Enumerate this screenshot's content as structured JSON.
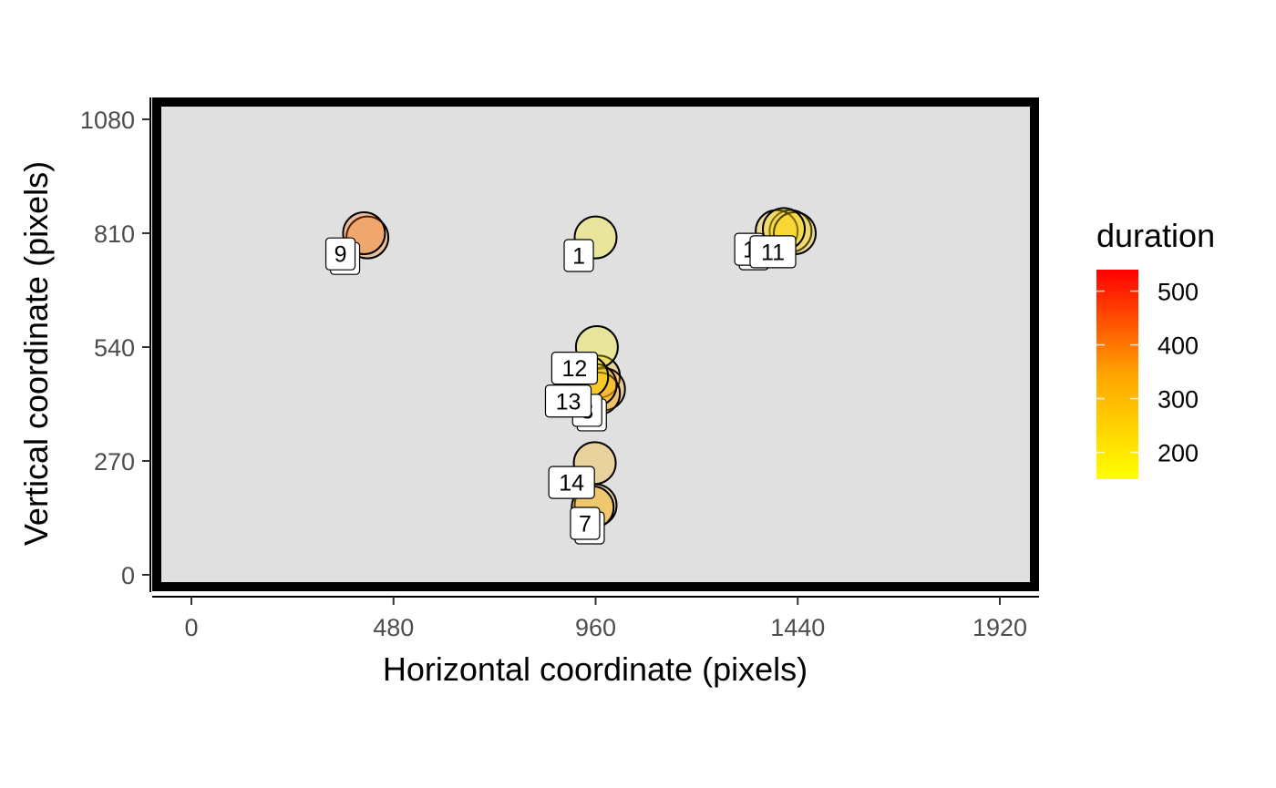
{
  "chart_data": {
    "type": "scatter",
    "title": "",
    "xlabel": "Horizontal coordinate (pixels)",
    "ylabel": "Vertical coordinate (pixels)",
    "xlim": [
      -100,
      2020
    ],
    "ylim": [
      -50,
      1110
    ],
    "x_ticks": [
      0,
      480,
      960,
      1440,
      1920
    ],
    "y_ticks": [
      0,
      270,
      540,
      810,
      1080
    ],
    "grid": false,
    "panel_background": "#e0e0e0",
    "panel_border_color": "#000000",
    "point_stroke_color": "#000000",
    "point_fill_opacity": 0.3,
    "legend": {
      "title": "duration",
      "position": "right",
      "ticks": [
        200,
        300,
        400,
        500
      ],
      "range": [
        150,
        540
      ],
      "color_low": "#ffff00",
      "color_high": "#ff0000"
    },
    "points": [
      {
        "id": "1",
        "x": 960,
        "y": 800,
        "duration": 180,
        "show_label": true
      },
      {
        "id": "2",
        "x": 1423,
        "y": 815,
        "duration": 250,
        "show_label": false
      },
      {
        "id": "3",
        "x": 968,
        "y": 470,
        "duration": 310,
        "show_label": false
      },
      {
        "id": "4",
        "x": 980,
        "y": 440,
        "duration": 360,
        "show_label": false
      },
      {
        "id": "5",
        "x": 968,
        "y": 430,
        "duration": 330,
        "show_label": false
      },
      {
        "id": "6",
        "x": 960,
        "y": 165,
        "duration": 330,
        "show_label": false
      },
      {
        "id": "7",
        "x": 953,
        "y": 160,
        "duration": 310,
        "show_label": true
      },
      {
        "id": "8",
        "x": 418,
        "y": 800,
        "duration": 400,
        "show_label": false
      },
      {
        "id": "9",
        "x": 410,
        "y": 810,
        "duration": 410,
        "show_label": true
      },
      {
        "id": "10",
        "x": 1390,
        "y": 815,
        "duration": 260,
        "show_label": true
      },
      {
        "id": "11",
        "x": 1433,
        "y": 810,
        "duration": 250,
        "show_label": true
      },
      {
        "id": "12",
        "x": 963,
        "y": 540,
        "duration": 190,
        "show_label": true
      },
      {
        "id": "13",
        "x": 960,
        "y": 450,
        "duration": 280,
        "show_label": true
      },
      {
        "id": "14",
        "x": 958,
        "y": 265,
        "duration": 320,
        "show_label": true
      },
      {
        "id": "15",
        "x": 1407,
        "y": 820,
        "duration": 230,
        "show_label": false
      },
      {
        "id": "16",
        "x": 940,
        "y": 470,
        "duration": 200,
        "show_label": false
      }
    ],
    "labels": [
      {
        "text": "9",
        "x": 354,
        "y": 761,
        "stack": 2
      },
      {
        "text": "1",
        "x": 920,
        "y": 757,
        "stack": 1
      },
      {
        "text": "1",
        "x": 1325,
        "y": 772,
        "stack": 2
      },
      {
        "text": "11",
        "x": 1381,
        "y": 766,
        "stack": 1
      },
      {
        "text": "12",
        "x": 910,
        "y": 490,
        "stack": 1
      },
      {
        "text": "3",
        "x": 940,
        "y": 390,
        "stack": 2
      },
      {
        "text": "13",
        "x": 895,
        "y": 412,
        "stack": 1
      },
      {
        "text": "14",
        "x": 903,
        "y": 219,
        "stack": 1
      },
      {
        "text": "7",
        "x": 935,
        "y": 122,
        "stack": 2
      }
    ]
  }
}
